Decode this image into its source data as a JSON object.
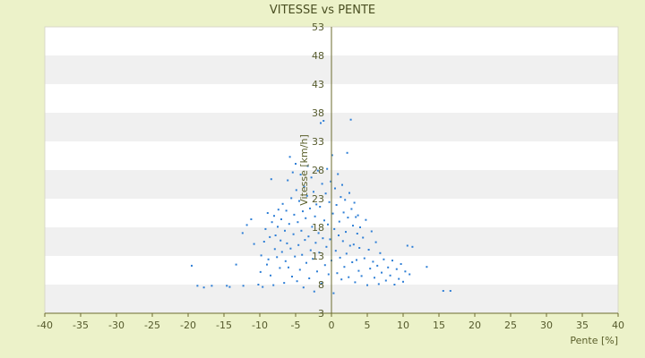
{
  "chart_data": {
    "type": "scatter",
    "title": "VITESSE vs PENTE",
    "xlabel": "Pente [%]",
    "ylabel": "Vitesse [km/h]",
    "xlim": [
      -40,
      40
    ],
    "ylim": [
      3,
      53
    ],
    "xticks": [
      -40,
      -35,
      -30,
      -25,
      -20,
      -15,
      -10,
      -5,
      0,
      5,
      10,
      15,
      20,
      25,
      30,
      35,
      40
    ],
    "yticks": [
      3,
      8,
      13,
      18,
      23,
      28,
      33,
      38,
      43,
      48,
      53
    ],
    "grid": true,
    "colors": {
      "background": "#ecf2c9",
      "plot_band_light": "#ffffff",
      "plot_band_dark": "#f0f0f0",
      "point": "#2f7fd6",
      "axis": "#6b6b2e"
    },
    "series": [
      {
        "points": [
          [
            -19.5,
            11.3
          ],
          [
            -18.7,
            7.8
          ],
          [
            -17.8,
            7.5
          ],
          [
            -16.7,
            7.8
          ],
          [
            -14.6,
            7.8
          ],
          [
            -14.2,
            7.6
          ],
          [
            -13.3,
            11.5
          ],
          [
            -12.4,
            17.0
          ],
          [
            -12.3,
            7.8
          ],
          [
            -11.8,
            18.4
          ],
          [
            -11.2,
            19.4
          ],
          [
            -10.8,
            15.1
          ],
          [
            -10.2,
            8.0
          ],
          [
            -9.9,
            10.2
          ],
          [
            -9.8,
            13.1
          ],
          [
            -9.6,
            7.6
          ],
          [
            -9.4,
            15.5
          ],
          [
            -9.2,
            17.7
          ],
          [
            -9.0,
            11.5
          ],
          [
            -8.9,
            20.5
          ],
          [
            -8.8,
            12.4
          ],
          [
            -8.6,
            16.3
          ],
          [
            -8.5,
            9.6
          ],
          [
            -8.4,
            26.4
          ],
          [
            -8.3,
            18.9
          ],
          [
            -8.1,
            7.9
          ],
          [
            -8.0,
            20.0
          ],
          [
            -7.9,
            14.2
          ],
          [
            -7.8,
            16.6
          ],
          [
            -7.6,
            12.8
          ],
          [
            -7.5,
            18.1
          ],
          [
            -7.4,
            21.1
          ],
          [
            -7.2,
            10.9
          ],
          [
            -7.1,
            15.7
          ],
          [
            -7.0,
            19.4
          ],
          [
            -6.9,
            13.7
          ],
          [
            -6.8,
            22.1
          ],
          [
            -6.6,
            8.3
          ],
          [
            -6.5,
            17.4
          ],
          [
            -6.4,
            12.1
          ],
          [
            -6.3,
            20.9
          ],
          [
            -6.2,
            15.2
          ],
          [
            -6.1,
            26.2
          ],
          [
            -6.0,
            11.0
          ],
          [
            -5.9,
            18.6
          ],
          [
            -5.8,
            30.3
          ],
          [
            -5.7,
            14.3
          ],
          [
            -5.6,
            23.1
          ],
          [
            -5.5,
            9.4
          ],
          [
            -5.4,
            27.6
          ],
          [
            -5.3,
            16.8
          ],
          [
            -5.2,
            20.2
          ],
          [
            -5.1,
            12.9
          ],
          [
            -5.0,
            29.1
          ],
          [
            -4.9,
            24.5
          ],
          [
            -4.8,
            8.6
          ],
          [
            -4.7,
            18.9
          ],
          [
            -4.6,
            14.9
          ],
          [
            -4.5,
            22.6
          ],
          [
            -4.4,
            10.6
          ],
          [
            -4.3,
            27.2
          ],
          [
            -4.2,
            17.4
          ],
          [
            -4.1,
            13.2
          ],
          [
            -4.0,
            20.8
          ],
          [
            -3.9,
            7.5
          ],
          [
            -3.8,
            25.1
          ],
          [
            -3.7,
            15.8
          ],
          [
            -3.6,
            19.6
          ],
          [
            -3.5,
            11.8
          ],
          [
            -3.4,
            23.5
          ],
          [
            -3.3,
            28.7
          ],
          [
            -3.2,
            16.4
          ],
          [
            -3.1,
            9.1
          ],
          [
            -3.0,
            21.3
          ],
          [
            -2.9,
            14.0
          ],
          [
            -2.8,
            26.7
          ],
          [
            -2.7,
            18.1
          ],
          [
            -2.6,
            12.5
          ],
          [
            -2.5,
            24.2
          ],
          [
            -2.4,
            6.8
          ],
          [
            -2.3,
            19.9
          ],
          [
            -2.2,
            15.3
          ],
          [
            -2.1,
            22.0
          ],
          [
            -2.0,
            10.3
          ],
          [
            -1.9,
            27.9
          ],
          [
            -1.8,
            17.0
          ],
          [
            -1.7,
            13.6
          ],
          [
            -1.6,
            21.6
          ],
          [
            -1.5,
            36.2
          ],
          [
            -1.4,
            8.2
          ],
          [
            -1.3,
            25.6
          ],
          [
            -1.2,
            16.1
          ],
          [
            -1.1,
            36.6
          ],
          [
            -1.0,
            19.2
          ],
          [
            -0.9,
            11.4
          ],
          [
            -0.8,
            23.9
          ],
          [
            -0.7,
            14.6
          ],
          [
            -0.6,
            28.2
          ],
          [
            -0.5,
            18.5
          ],
          [
            -0.4,
            9.8
          ],
          [
            -0.3,
            22.4
          ],
          [
            -0.2,
            15.9
          ],
          [
            -0.1,
            26.0
          ],
          [
            0.0,
            12.2
          ],
          [
            0.1,
            30.6
          ],
          [
            0.2,
            20.4
          ],
          [
            0.3,
            6.5
          ],
          [
            0.4,
            17.7
          ],
          [
            0.5,
            24.8
          ],
          [
            0.6,
            13.9
          ],
          [
            0.7,
            21.9
          ],
          [
            0.8,
            10.0
          ],
          [
            0.9,
            27.3
          ],
          [
            1.0,
            16.6
          ],
          [
            1.1,
            19.0
          ],
          [
            1.2,
            12.7
          ],
          [
            1.3,
            23.3
          ],
          [
            1.4,
            8.9
          ],
          [
            1.5,
            25.4
          ],
          [
            1.6,
            15.6
          ],
          [
            1.7,
            20.6
          ],
          [
            1.8,
            11.1
          ],
          [
            1.9,
            22.8
          ],
          [
            2.0,
            17.2
          ],
          [
            2.1,
            13.4
          ],
          [
            2.2,
            31.0
          ],
          [
            2.3,
            19.7
          ],
          [
            2.4,
            9.3
          ],
          [
            2.5,
            24.0
          ],
          [
            2.6,
            14.8
          ],
          [
            2.7,
            36.8
          ],
          [
            2.8,
            21.2
          ],
          [
            2.9,
            11.9
          ],
          [
            3.0,
            18.3
          ],
          [
            3.1,
            15.0
          ],
          [
            3.2,
            22.3
          ],
          [
            3.3,
            8.4
          ],
          [
            3.4,
            19.8
          ],
          [
            3.5,
            12.3
          ],
          [
            3.6,
            16.9
          ],
          [
            3.7,
            20.1
          ],
          [
            3.8,
            10.4
          ],
          [
            3.9,
            14.4
          ],
          [
            4.0,
            18.0
          ],
          [
            4.2,
            9.5
          ],
          [
            4.4,
            16.2
          ],
          [
            4.6,
            12.6
          ],
          [
            4.8,
            19.3
          ],
          [
            5.0,
            7.9
          ],
          [
            5.2,
            14.1
          ],
          [
            5.4,
            10.8
          ],
          [
            5.6,
            17.3
          ],
          [
            5.8,
            12.0
          ],
          [
            6.0,
            9.2
          ],
          [
            6.2,
            15.4
          ],
          [
            6.4,
            11.3
          ],
          [
            6.6,
            8.1
          ],
          [
            6.8,
            13.5
          ],
          [
            7.0,
            10.1
          ],
          [
            7.3,
            12.4
          ],
          [
            7.6,
            8.7
          ],
          [
            7.9,
            11.0
          ],
          [
            8.2,
            9.6
          ],
          [
            8.5,
            12.2
          ],
          [
            8.8,
            8.0
          ],
          [
            9.1,
            10.7
          ],
          [
            9.4,
            9.0
          ],
          [
            9.7,
            11.6
          ],
          [
            10.0,
            8.5
          ],
          [
            10.3,
            10.3
          ],
          [
            10.6,
            14.8
          ],
          [
            10.9,
            9.8
          ],
          [
            11.3,
            14.6
          ],
          [
            13.3,
            11.1
          ],
          [
            15.6,
            6.9
          ],
          [
            16.6,
            6.9
          ]
        ]
      }
    ]
  }
}
